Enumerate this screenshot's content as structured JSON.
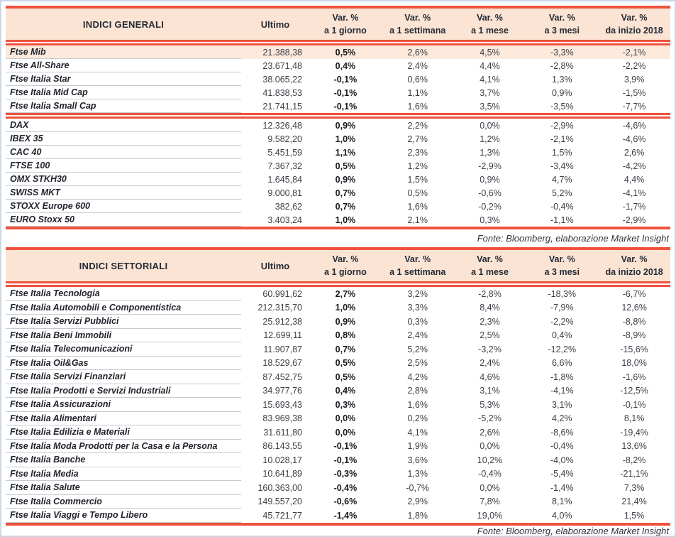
{
  "page": {
    "colors": {
      "accent_red": "#f0513c",
      "header_bg": "#fbe4d4",
      "highlight_row_bg": "#fdeadd",
      "page_border": "#c9d7e5",
      "row_divider": "#c6cacf"
    }
  },
  "tables": [
    {
      "title": "INDICI GENERALI",
      "value_header": "Ultimo",
      "var_headers": [
        "Var. %\na 1 giorno",
        "Var. %\na 1 settimana",
        "Var. %\na 1 mese",
        "Var. %\na 3 mesi",
        "Var. %\nda inizio 2018"
      ],
      "source_note": "Fonte: Bloomberg, elaborazione Market Insight",
      "sections": [
        {
          "rows": [
            {
              "name": "Ftse Mib",
              "ultimo": "21.388,38",
              "vars": [
                "0,5%",
                "2,6%",
                "4,5%",
                "-3,3%",
                "-2,1%"
              ],
              "highlight": true
            },
            {
              "name": "Ftse All-Share",
              "ultimo": "23.671,48",
              "vars": [
                "0,4%",
                "2,4%",
                "4,4%",
                "-2,8%",
                "-2,2%"
              ]
            },
            {
              "name": "Ftse Italia Star",
              "ultimo": "38.065,22",
              "vars": [
                "-0,1%",
                "0,6%",
                "4,1%",
                "1,3%",
                "3,9%"
              ]
            },
            {
              "name": "Ftse Italia Mid Cap",
              "ultimo": "41.838,53",
              "vars": [
                "-0,1%",
                "1,1%",
                "3,7%",
                "0,9%",
                "-1,5%"
              ]
            },
            {
              "name": "Ftse Italia Small Cap",
              "ultimo": "21.741,15",
              "vars": [
                "-0,1%",
                "1,6%",
                "3,5%",
                "-3,5%",
                "-7,7%"
              ]
            }
          ]
        },
        {
          "rows": [
            {
              "name": "DAX",
              "ultimo": "12.326,48",
              "vars": [
                "0,9%",
                "2,2%",
                "0,0%",
                "-2,9%",
                "-4,6%"
              ]
            },
            {
              "name": "IBEX 35",
              "ultimo": "9.582,20",
              "vars": [
                "1,0%",
                "2,7%",
                "1,2%",
                "-2,1%",
                "-4,6%"
              ]
            },
            {
              "name": "CAC 40",
              "ultimo": "5.451,59",
              "vars": [
                "1,1%",
                "2,3%",
                "1,3%",
                "1,5%",
                "2,6%"
              ]
            },
            {
              "name": "FTSE 100",
              "ultimo": "7.367,32",
              "vars": [
                "0,5%",
                "1,2%",
                "-2,9%",
                "-3,4%",
                "-4,2%"
              ]
            },
            {
              "name": "OMX STKH30",
              "ultimo": "1.645,84",
              "vars": [
                "0,9%",
                "1,5%",
                "0,9%",
                "4,7%",
                "4,4%"
              ]
            },
            {
              "name": "SWISS MKT",
              "ultimo": "9.000,81",
              "vars": [
                "0,7%",
                "0,5%",
                "-0,6%",
                "5,2%",
                "-4,1%"
              ]
            },
            {
              "name": "STOXX Europe 600",
              "ultimo": "382,62",
              "vars": [
                "0,7%",
                "1,6%",
                "-0,2%",
                "-0,4%",
                "-1,7%"
              ]
            },
            {
              "name": "EURO Stoxx 50",
              "ultimo": "3.403,24",
              "vars": [
                "1,0%",
                "2,1%",
                "0,3%",
                "-1,1%",
                "-2,9%"
              ]
            }
          ]
        }
      ]
    },
    {
      "title": "INDICI SETTORIALI",
      "value_header": "Ultimo",
      "var_headers": [
        "Var. %\na 1 giorno",
        "Var. %\na 1 settimana",
        "Var. %\na 1 mese",
        "Var. %\na 3 mesi",
        "Var. %\nda inizio 2018"
      ],
      "source_note": "Fonte: Bloomberg, elaborazione Market Insight",
      "sections": [
        {
          "rows": [
            {
              "name": "Ftse Italia Tecnologia",
              "ultimo": "60.991,62",
              "vars": [
                "2,7%",
                "3,2%",
                "-2,8%",
                "-18,3%",
                "-6,7%"
              ]
            },
            {
              "name": "Ftse Italia Automobili e Componentistica",
              "ultimo": "212.315,70",
              "vars": [
                "1,0%",
                "3,3%",
                "8,4%",
                "-7,9%",
                "12,6%"
              ]
            },
            {
              "name": "Ftse Italia Servizi Pubblici",
              "ultimo": "25.912,38",
              "vars": [
                "0,9%",
                "0,3%",
                "2,3%",
                "-2,2%",
                "-8,8%"
              ]
            },
            {
              "name": "Ftse Italia Beni Immobili",
              "ultimo": "12.699,11",
              "vars": [
                "0,8%",
                "2,4%",
                "2,5%",
                "0,4%",
                "-8,9%"
              ]
            },
            {
              "name": "Ftse Italia Telecomunicazioni",
              "ultimo": "11.907,87",
              "vars": [
                "0,7%",
                "5,2%",
                "-3,2%",
                "-12,2%",
                "-15,6%"
              ]
            },
            {
              "name": "Ftse Italia Oil&Gas",
              "ultimo": "18.529,67",
              "vars": [
                "0,5%",
                "2,5%",
                "2,4%",
                "6,6%",
                "18,0%"
              ]
            },
            {
              "name": "Ftse Italia Servizi Finanziari",
              "ultimo": "87.452,75",
              "vars": [
                "0,5%",
                "4,2%",
                "4,6%",
                "-1,8%",
                "-1,6%"
              ]
            },
            {
              "name": "Ftse Italia Prodotti e Servizi Industriali",
              "ultimo": "34.977,76",
              "vars": [
                "0,4%",
                "2,8%",
                "3,1%",
                "-4,1%",
                "-12,5%"
              ]
            },
            {
              "name": "Ftse Italia Assicurazioni",
              "ultimo": "15.693,43",
              "vars": [
                "0,3%",
                "1,6%",
                "5,3%",
                "3,1%",
                "-0,1%"
              ]
            },
            {
              "name": "Ftse Italia Alimentari",
              "ultimo": "83.969,38",
              "vars": [
                "0,0%",
                "0,2%",
                "-5,2%",
                "4,2%",
                "8,1%"
              ]
            },
            {
              "name": "Ftse Italia Edilizia e Materiali",
              "ultimo": "31.611,80",
              "vars": [
                "0,0%",
                "4,1%",
                "2,6%",
                "-8,6%",
                "-19,4%"
              ]
            },
            {
              "name": "Ftse Italia Moda Prodotti per la Casa e la Persona",
              "ultimo": "86.143,55",
              "vars": [
                "-0,1%",
                "1,9%",
                "0,0%",
                "-0,4%",
                "13,6%"
              ]
            },
            {
              "name": "Ftse Italia Banche",
              "ultimo": "10.028,17",
              "vars": [
                "-0,1%",
                "3,6%",
                "10,2%",
                "-4,0%",
                "-8,2%"
              ]
            },
            {
              "name": "Ftse Italia Media",
              "ultimo": "10.641,89",
              "vars": [
                "-0,3%",
                "1,3%",
                "-0,4%",
                "-5,4%",
                "-21,1%"
              ]
            },
            {
              "name": "Ftse Italia Salute",
              "ultimo": "160.363,00",
              "vars": [
                "-0,4%",
                "-0,7%",
                "0,0%",
                "-1,4%",
                "7,3%"
              ]
            },
            {
              "name": "Ftse Italia Commercio",
              "ultimo": "149.557,20",
              "vars": [
                "-0,6%",
                "2,9%",
                "7,8%",
                "8,1%",
                "21,4%"
              ]
            },
            {
              "name": "Ftse Italia Viaggi e Tempo Libero",
              "ultimo": "45.721,77",
              "vars": [
                "-1,4%",
                "1,8%",
                "19,0%",
                "4,0%",
                "1,5%"
              ]
            }
          ]
        }
      ]
    }
  ]
}
